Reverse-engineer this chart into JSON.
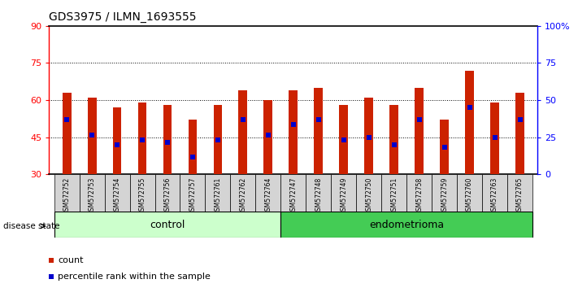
{
  "title": "GDS3975 / ILMN_1693555",
  "samples": [
    "GSM572752",
    "GSM572753",
    "GSM572754",
    "GSM572755",
    "GSM572756",
    "GSM572757",
    "GSM572761",
    "GSM572762",
    "GSM572764",
    "GSM572747",
    "GSM572748",
    "GSM572749",
    "GSM572750",
    "GSM572751",
    "GSM572758",
    "GSM572759",
    "GSM572760",
    "GSM572763",
    "GSM572765"
  ],
  "counts": [
    63,
    61,
    57,
    59,
    58,
    52,
    58,
    64,
    60,
    64,
    65,
    58,
    61,
    58,
    65,
    52,
    72,
    59,
    63
  ],
  "percentiles_left": [
    52,
    46,
    42,
    44,
    43,
    37,
    44,
    52,
    46,
    50,
    52,
    44,
    45,
    42,
    52,
    41,
    57,
    45,
    52
  ],
  "control_count": 9,
  "endometrioma_count": 10,
  "ymin": 30,
  "ymax": 90,
  "yticks": [
    30,
    45,
    60,
    75,
    90
  ],
  "right_yticks": [
    0,
    25,
    50,
    75,
    100
  ],
  "grid_lines": [
    45,
    60,
    75
  ],
  "bar_color": "#cc2200",
  "marker_color": "#0000cc",
  "bar_bottom": 30,
  "control_bg": "#ccffcc",
  "endo_bg": "#44cc55",
  "label_area_color": "#d4d4d4",
  "background_color": "#ffffff",
  "bar_width": 0.35
}
